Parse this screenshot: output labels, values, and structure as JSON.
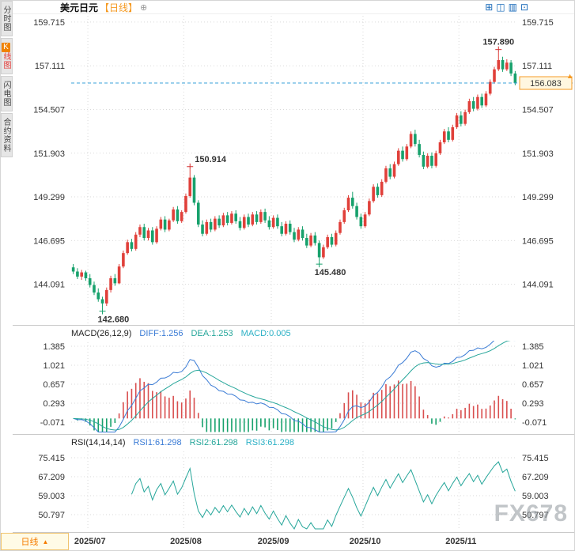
{
  "sidebar": {
    "tabs": [
      {
        "label": "分时图"
      },
      {
        "k": "K",
        "label": "线图",
        "active": true
      },
      {
        "label": "闪电图"
      },
      {
        "label": "合约资料"
      }
    ]
  },
  "header": {
    "symbol": "美元日元",
    "period": "【日线】",
    "plus": "⊕",
    "icons": [
      "⊞",
      "◫",
      "▥",
      "⊡"
    ]
  },
  "price_axis": {
    "labels": [
      "159.715",
      "157.111",
      "154.507",
      "151.903",
      "149.299",
      "146.695",
      "144.091"
    ]
  },
  "current_price": {
    "value": "156.083",
    "numeric": 156.083,
    "arrow": "▲"
  },
  "macd": {
    "title": "MACD(26,12,9)",
    "diff": "DIFF:1.256",
    "dea": "DEA:1.253",
    "macd": "MACD:0.005",
    "axis_labels": [
      "1.385",
      "1.021",
      "0.657",
      "0.293",
      "-0.071"
    ]
  },
  "rsi": {
    "title": "RSI(14,14,14)",
    "r1": "RSI1:61.298",
    "r2": "RSI2:61.298",
    "r3": "RSI3:61.298",
    "axis_labels": [
      "75.415",
      "67.209",
      "59.003",
      "50.797"
    ]
  },
  "badge": {
    "label": "日线",
    "arrow": "▲"
  },
  "watermark": "FX678",
  "chart_data": {
    "type": "candlestick",
    "title": "美元日元 日线",
    "timeframe": "日线",
    "y_axis_labels": [
      "159.715",
      "157.111",
      "154.507",
      "151.903",
      "149.299",
      "146.695",
      "144.091"
    ],
    "price_axis_max": 159.9,
    "price_axis_min": 142.0,
    "colors": {
      "up": "#e0403a",
      "down": "#17a16c",
      "grid": "#d9d9d9",
      "dash_line": "#3aa0d8",
      "accent": "#f59a23"
    },
    "month_ticks": [
      {
        "label": "2025/07",
        "index": 4
      },
      {
        "label": "2025/08",
        "index": 27
      },
      {
        "label": "2025/09",
        "index": 48
      },
      {
        "label": "2025/10",
        "index": 70
      },
      {
        "label": "2025/11",
        "index": 93
      }
    ],
    "annotations": [
      {
        "index": 7,
        "price": 142.68,
        "text": "142.680",
        "side": "low"
      },
      {
        "index": 28,
        "price": 150.914,
        "text": "150.914",
        "side": "high"
      },
      {
        "index": 59,
        "price": 145.48,
        "text": "145.480",
        "side": "low"
      },
      {
        "index": 102,
        "price": 157.89,
        "text": "157.890",
        "side": "high"
      }
    ],
    "current_price": 156.083,
    "candles": [
      [
        145.1,
        145.3,
        144.7,
        144.85
      ],
      [
        144.85,
        145.05,
        144.4,
        144.55
      ],
      [
        144.55,
        144.95,
        144.35,
        144.8
      ],
      [
        144.8,
        144.9,
        144.3,
        144.45
      ],
      [
        144.45,
        144.7,
        143.9,
        144.05
      ],
      [
        144.05,
        144.25,
        143.45,
        143.6
      ],
      [
        143.6,
        143.85,
        143.05,
        143.2
      ],
      [
        143.2,
        143.35,
        142.68,
        142.95
      ],
      [
        142.95,
        143.9,
        142.8,
        143.75
      ],
      [
        143.75,
        144.6,
        143.6,
        144.45
      ],
      [
        144.45,
        144.7,
        144.0,
        144.15
      ],
      [
        144.15,
        145.3,
        144.1,
        145.15
      ],
      [
        145.15,
        146.1,
        145.05,
        145.95
      ],
      [
        145.95,
        146.75,
        145.85,
        146.6
      ],
      [
        146.6,
        146.8,
        146.05,
        146.2
      ],
      [
        146.2,
        147.2,
        146.1,
        147.05
      ],
      [
        147.05,
        147.65,
        146.9,
        147.5
      ],
      [
        147.5,
        147.7,
        146.7,
        146.85
      ],
      [
        146.85,
        147.45,
        146.7,
        147.3
      ],
      [
        147.3,
        147.5,
        146.45,
        146.6
      ],
      [
        146.6,
        147.55,
        146.5,
        147.4
      ],
      [
        147.4,
        148.1,
        147.3,
        147.95
      ],
      [
        147.95,
        148.15,
        147.2,
        147.35
      ],
      [
        147.35,
        148.0,
        147.25,
        147.9
      ],
      [
        147.9,
        148.7,
        147.8,
        148.55
      ],
      [
        148.55,
        148.75,
        147.7,
        147.85
      ],
      [
        147.85,
        148.5,
        147.75,
        148.4
      ],
      [
        148.4,
        149.5,
        148.3,
        149.35
      ],
      [
        149.35,
        150.914,
        149.25,
        150.45
      ],
      [
        150.45,
        150.6,
        148.8,
        148.95
      ],
      [
        148.95,
        149.1,
        147.5,
        147.65
      ],
      [
        147.65,
        147.9,
        146.95,
        147.1
      ],
      [
        147.1,
        147.95,
        147.0,
        147.8
      ],
      [
        147.8,
        148.0,
        147.2,
        147.35
      ],
      [
        147.35,
        148.15,
        147.25,
        148.0
      ],
      [
        148.0,
        148.2,
        147.45,
        147.6
      ],
      [
        147.6,
        148.35,
        147.5,
        148.2
      ],
      [
        148.2,
        148.4,
        147.6,
        147.75
      ],
      [
        147.75,
        148.45,
        147.65,
        148.3
      ],
      [
        148.3,
        148.5,
        147.7,
        147.85
      ],
      [
        147.85,
        148.1,
        147.3,
        147.45
      ],
      [
        147.45,
        148.25,
        147.35,
        148.1
      ],
      [
        148.1,
        148.3,
        147.5,
        147.65
      ],
      [
        147.65,
        148.4,
        147.55,
        148.25
      ],
      [
        148.25,
        148.45,
        147.65,
        147.8
      ],
      [
        147.8,
        148.55,
        147.7,
        148.4
      ],
      [
        148.4,
        148.6,
        147.75,
        147.9
      ],
      [
        147.9,
        148.15,
        147.35,
        147.5
      ],
      [
        147.5,
        148.2,
        147.4,
        148.05
      ],
      [
        148.05,
        148.25,
        147.4,
        147.55
      ],
      [
        147.55,
        147.8,
        146.95,
        147.1
      ],
      [
        147.1,
        147.85,
        147.0,
        147.7
      ],
      [
        147.7,
        147.9,
        147.05,
        147.2
      ],
      [
        147.2,
        147.45,
        146.6,
        146.75
      ],
      [
        146.75,
        147.5,
        146.65,
        147.35
      ],
      [
        147.35,
        147.55,
        146.7,
        146.85
      ],
      [
        146.85,
        147.1,
        146.25,
        146.4
      ],
      [
        146.4,
        147.15,
        146.3,
        147.0
      ],
      [
        147.0,
        147.2,
        146.4,
        146.55
      ],
      [
        146.55,
        146.7,
        145.48,
        145.7
      ],
      [
        145.7,
        146.45,
        145.6,
        146.3
      ],
      [
        146.3,
        147.05,
        146.2,
        146.9
      ],
      [
        146.9,
        147.1,
        146.3,
        146.45
      ],
      [
        146.45,
        147.3,
        146.35,
        147.15
      ],
      [
        147.15,
        147.95,
        147.05,
        147.8
      ],
      [
        147.8,
        148.65,
        147.7,
        148.5
      ],
      [
        148.5,
        149.4,
        148.4,
        149.25
      ],
      [
        149.25,
        149.6,
        148.6,
        148.75
      ],
      [
        148.75,
        148.95,
        147.95,
        148.1
      ],
      [
        148.1,
        148.3,
        147.4,
        147.55
      ],
      [
        147.55,
        148.4,
        147.45,
        148.25
      ],
      [
        148.25,
        149.2,
        148.15,
        149.05
      ],
      [
        149.05,
        150.05,
        148.95,
        149.9
      ],
      [
        149.9,
        150.1,
        149.25,
        149.4
      ],
      [
        149.4,
        150.35,
        149.3,
        150.2
      ],
      [
        150.2,
        151.15,
        150.1,
        151.0
      ],
      [
        151.0,
        151.25,
        150.35,
        150.5
      ],
      [
        150.5,
        151.4,
        150.4,
        151.25
      ],
      [
        151.25,
        152.2,
        151.15,
        152.05
      ],
      [
        152.05,
        152.3,
        151.4,
        151.55
      ],
      [
        151.55,
        152.45,
        151.45,
        152.3
      ],
      [
        152.3,
        153.2,
        152.2,
        153.05
      ],
      [
        153.05,
        153.3,
        152.3,
        152.45
      ],
      [
        152.45,
        152.7,
        151.65,
        151.8
      ],
      [
        151.8,
        152.0,
        150.95,
        151.1
      ],
      [
        151.1,
        151.9,
        151.0,
        151.75
      ],
      [
        151.75,
        151.95,
        151.0,
        151.15
      ],
      [
        151.15,
        152.05,
        151.05,
        151.9
      ],
      [
        151.9,
        152.7,
        151.8,
        152.55
      ],
      [
        152.55,
        153.35,
        152.45,
        153.2
      ],
      [
        153.2,
        153.45,
        152.55,
        152.7
      ],
      [
        152.7,
        153.6,
        152.6,
        153.45
      ],
      [
        153.45,
        154.3,
        153.35,
        154.15
      ],
      [
        154.15,
        154.4,
        153.5,
        153.65
      ],
      [
        153.65,
        154.5,
        153.55,
        154.35
      ],
      [
        154.35,
        155.15,
        154.25,
        155.0
      ],
      [
        155.0,
        155.25,
        154.4,
        154.55
      ],
      [
        154.55,
        155.4,
        154.45,
        155.25
      ],
      [
        155.25,
        155.45,
        154.6,
        154.75
      ],
      [
        154.75,
        155.6,
        154.65,
        155.45
      ],
      [
        155.45,
        156.3,
        155.35,
        156.15
      ],
      [
        156.15,
        157.05,
        156.05,
        156.9
      ],
      [
        156.9,
        157.89,
        156.8,
        157.45
      ],
      [
        157.45,
        157.65,
        156.75,
        156.9
      ],
      [
        156.9,
        157.5,
        156.8,
        157.3
      ],
      [
        157.3,
        157.45,
        156.5,
        156.65
      ],
      [
        156.65,
        156.8,
        155.95,
        156.083
      ]
    ],
    "indicators": {
      "macd": {
        "params": [
          26,
          12,
          9
        ],
        "diff": 1.256,
        "dea": 1.253,
        "macd": 0.005,
        "axis_labels": [
          1.385,
          1.021,
          0.657,
          0.293,
          -0.071
        ]
      },
      "rsi": {
        "params": [
          14,
          14,
          14
        ],
        "rsi1": 61.298,
        "rsi2": 61.298,
        "rsi3": 61.298,
        "axis_labels": [
          75.415,
          67.209,
          59.003,
          50.797
        ]
      }
    }
  }
}
